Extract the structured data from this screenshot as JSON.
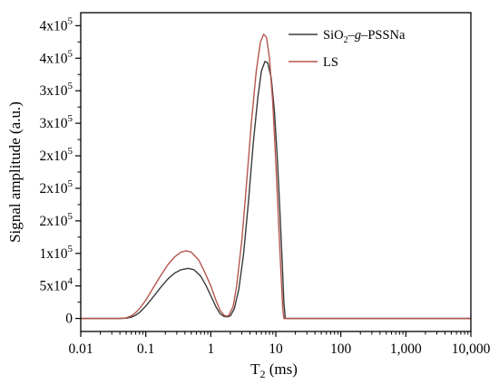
{
  "chart_data": {
    "type": "line",
    "xlabel": "T",
    "xlabel_sub": "2",
    "xlabel_unit": " (ms)",
    "ylabel": "Signal amplitude (a.u.)",
    "x_scale": "log",
    "xlim": [
      0.01,
      10000
    ],
    "ylim": [
      -20000,
      470000
    ],
    "x_ticks": [
      {
        "value": 0.01,
        "label": "0.01"
      },
      {
        "value": 0.1,
        "label": "0.1"
      },
      {
        "value": 1,
        "label": "1"
      },
      {
        "value": 10,
        "label": "10"
      },
      {
        "value": 100,
        "label": "100"
      },
      {
        "value": 1000,
        "label": "1,000"
      },
      {
        "value": 10000,
        "label": "10,000"
      }
    ],
    "y_ticks": [
      {
        "value": 0,
        "base": "0",
        "exp": ""
      },
      {
        "value": 50000,
        "base": "5x10",
        "exp": "4"
      },
      {
        "value": 100000,
        "base": "1x10",
        "exp": "5"
      },
      {
        "value": 150000,
        "base": "2x10",
        "exp": "5"
      },
      {
        "value": 200000,
        "base": "2x10",
        "exp": "5"
      },
      {
        "value": 250000,
        "base": "2x10",
        "exp": "5"
      },
      {
        "value": 300000,
        "base": "3x10",
        "exp": "5"
      },
      {
        "value": 350000,
        "base": "3x10",
        "exp": "5"
      },
      {
        "value": 400000,
        "base": "4x10",
        "exp": "5"
      },
      {
        "value": 450000,
        "base": "4x10",
        "exp": "5"
      }
    ],
    "legend": {
      "placement": "top-right",
      "entries": [
        {
          "parts": [
            {
              "t": "SiO",
              "style": "normal"
            },
            {
              "t": "2",
              "style": "sub"
            },
            {
              "t": "–",
              "style": "normal"
            },
            {
              "t": "g",
              "style": "italic"
            },
            {
              "t": "–PSSNa",
              "style": "normal"
            }
          ]
        },
        {
          "parts": [
            {
              "t": "LS",
              "style": "normal"
            }
          ]
        }
      ]
    },
    "series": [
      {
        "color": "#3a3a3a",
        "points": [
          [
            0.01,
            0
          ],
          [
            0.04,
            0
          ],
          [
            0.05,
            500
          ],
          [
            0.06,
            2000
          ],
          [
            0.07,
            5000
          ],
          [
            0.08,
            9000
          ],
          [
            0.1,
            19000
          ],
          [
            0.13,
            33000
          ],
          [
            0.17,
            48000
          ],
          [
            0.22,
            61000
          ],
          [
            0.28,
            70000
          ],
          [
            0.35,
            75000
          ],
          [
            0.45,
            77000
          ],
          [
            0.55,
            75000
          ],
          [
            0.7,
            65000
          ],
          [
            0.85,
            50000
          ],
          [
            1.0,
            35000
          ],
          [
            1.2,
            18000
          ],
          [
            1.4,
            7000
          ],
          [
            1.6,
            3000
          ],
          [
            1.8,
            2500
          ],
          [
            2.0,
            4000
          ],
          [
            2.3,
            15000
          ],
          [
            2.7,
            45000
          ],
          [
            3.2,
            100000
          ],
          [
            3.8,
            180000
          ],
          [
            4.5,
            270000
          ],
          [
            5.3,
            340000
          ],
          [
            6.0,
            380000
          ],
          [
            6.8,
            395000
          ],
          [
            7.5,
            393000
          ],
          [
            8.5,
            370000
          ],
          [
            9.5,
            320000
          ],
          [
            10.5,
            250000
          ],
          [
            11.5,
            170000
          ],
          [
            12.5,
            90000
          ],
          [
            13.3,
            25000
          ],
          [
            14,
            0
          ],
          [
            10000,
            0
          ]
        ]
      },
      {
        "color": "#b5564e",
        "points": [
          [
            0.01,
            0
          ],
          [
            0.04,
            0
          ],
          [
            0.05,
            1000
          ],
          [
            0.06,
            4000
          ],
          [
            0.07,
            9000
          ],
          [
            0.08,
            15000
          ],
          [
            0.1,
            28000
          ],
          [
            0.13,
            47000
          ],
          [
            0.17,
            66000
          ],
          [
            0.22,
            83000
          ],
          [
            0.28,
            95000
          ],
          [
            0.35,
            102000
          ],
          [
            0.42,
            104000
          ],
          [
            0.5,
            102000
          ],
          [
            0.65,
            90000
          ],
          [
            0.8,
            72000
          ],
          [
            1.0,
            50000
          ],
          [
            1.2,
            28000
          ],
          [
            1.4,
            12000
          ],
          [
            1.6,
            5000
          ],
          [
            1.75,
            3500
          ],
          [
            1.9,
            5000
          ],
          [
            2.2,
            18000
          ],
          [
            2.5,
            50000
          ],
          [
            3.0,
            120000
          ],
          [
            3.5,
            200000
          ],
          [
            4.2,
            300000
          ],
          [
            5.0,
            380000
          ],
          [
            5.8,
            425000
          ],
          [
            6.5,
            437000
          ],
          [
            7.2,
            432000
          ],
          [
            8.0,
            400000
          ],
          [
            9.0,
            330000
          ],
          [
            10.0,
            240000
          ],
          [
            11.0,
            150000
          ],
          [
            12.0,
            70000
          ],
          [
            12.8,
            15000
          ],
          [
            13.3,
            0
          ],
          [
            10000,
            0
          ]
        ]
      }
    ]
  }
}
